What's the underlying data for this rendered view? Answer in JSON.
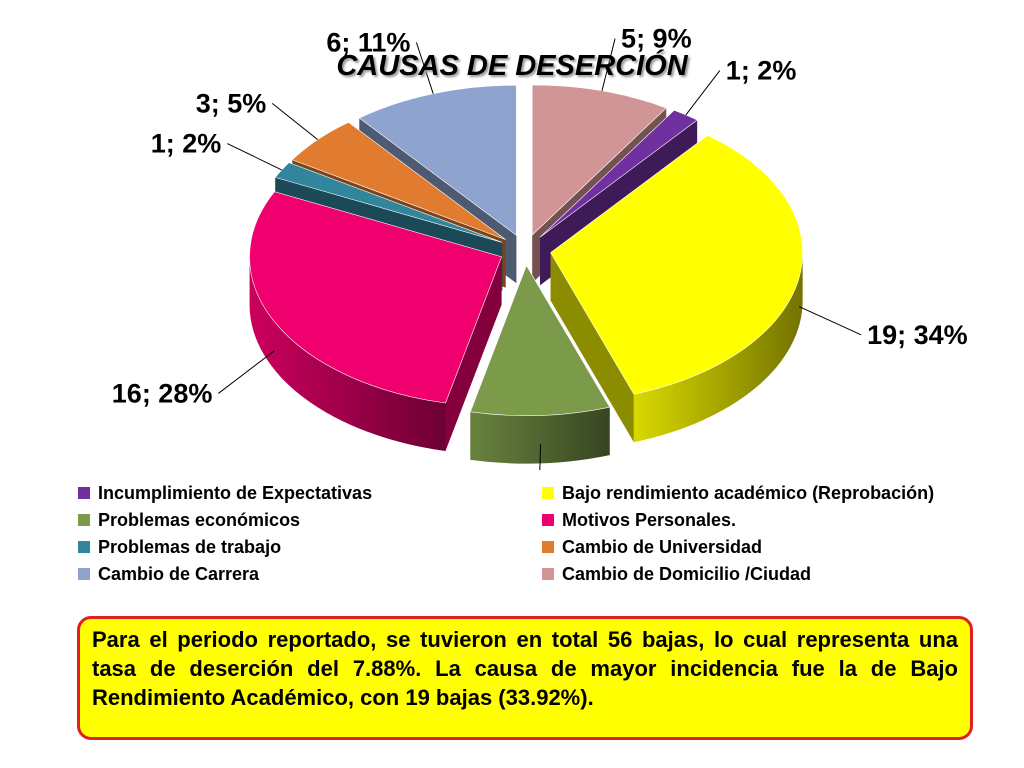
{
  "chart_data": {
    "type": "pie",
    "title": "CAUSAS DE DESERCIÓN",
    "slices": [
      {
        "name": "Incumplimiento de Expectativas",
        "value": 1,
        "percent": 2,
        "label": "1; 2%",
        "color": "#7030a0"
      },
      {
        "name": "Bajo rendimiento académico (Reprobación)",
        "value": 19,
        "percent": 34,
        "label": "19; 34%",
        "color": "#ffff00"
      },
      {
        "name": "Problemas económicos",
        "value": 5,
        "percent": 9,
        "label": "5; 9%",
        "color": "#7b9a4a"
      },
      {
        "name": "Motivos Personales.",
        "value": 16,
        "percent": 28,
        "label": "16; 28%",
        "color": "#f0006e"
      },
      {
        "name": "Problemas de trabajo",
        "value": 1,
        "percent": 2,
        "label": "1; 2%",
        "color": "#31859c"
      },
      {
        "name": "Cambio de Universidad",
        "value": 3,
        "percent": 5,
        "label": "3; 5%",
        "color": "#e07b30"
      },
      {
        "name": "Cambio de Carrera",
        "value": 6,
        "percent": 11,
        "label": "6; 11%",
        "color": "#8ea4cf"
      },
      {
        "name": "Cambio de Domicilio /Ciudad",
        "value": 5,
        "percent": 9,
        "label": "5; 9%",
        "color": "#d29595"
      }
    ],
    "legend_position": "bottom"
  },
  "summary": {
    "text": "Para el periodo reportado,  se tuvieron en total 56 bajas, lo cual representa una tasa de deserción del 7.88%. La causa de mayor incidencia fue la de Bajo Rendimiento Académico, con 19 bajas (33.92%)."
  },
  "colors": {
    "summary_background": "#ffff00",
    "summary_border": "#e02020"
  }
}
